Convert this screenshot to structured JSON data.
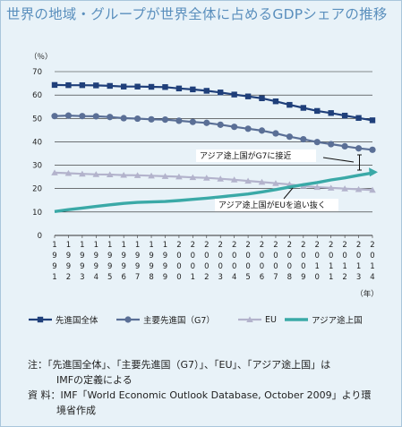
{
  "title": "世界の地域・グループが世界全体に占めるGDPシェアの推移",
  "chart_data": {
    "type": "line",
    "ylabel": "（％）",
    "xlabel": "（年）",
    "ylim": [
      0,
      70
    ],
    "yticks": [
      "0",
      "10",
      "20",
      "30",
      "40",
      "50",
      "60",
      "70"
    ],
    "grid": true,
    "x": [
      1991,
      1992,
      1993,
      1994,
      1995,
      1996,
      1997,
      1998,
      1999,
      2000,
      2001,
      2002,
      2003,
      2004,
      2005,
      2006,
      2007,
      2008,
      2009,
      2010,
      2011,
      2012,
      2013,
      2014
    ],
    "xticks": [
      [
        "1",
        "9",
        "9",
        "1"
      ],
      [
        "1",
        "9",
        "9",
        "2"
      ],
      [
        "1",
        "9",
        "9",
        "3"
      ],
      [
        "1",
        "9",
        "9",
        "4"
      ],
      [
        "1",
        "9",
        "9",
        "5"
      ],
      [
        "1",
        "9",
        "9",
        "6"
      ],
      [
        "1",
        "9",
        "9",
        "7"
      ],
      [
        "1",
        "9",
        "9",
        "8"
      ],
      [
        "1",
        "9",
        "9",
        "9"
      ],
      [
        "2",
        "0",
        "0",
        "0"
      ],
      [
        "2",
        "0",
        "0",
        "1"
      ],
      [
        "2",
        "0",
        "0",
        "2"
      ],
      [
        "2",
        "0",
        "0",
        "3"
      ],
      [
        "2",
        "0",
        "0",
        "4"
      ],
      [
        "2",
        "0",
        "0",
        "5"
      ],
      [
        "2",
        "0",
        "0",
        "6"
      ],
      [
        "2",
        "0",
        "0",
        "7"
      ],
      [
        "2",
        "0",
        "0",
        "8"
      ],
      [
        "2",
        "0",
        "0",
        "9"
      ],
      [
        "2",
        "0",
        "1",
        "0"
      ],
      [
        "2",
        "0",
        "1",
        "1"
      ],
      [
        "2",
        "0",
        "1",
        "2"
      ],
      [
        "2",
        "0",
        "1",
        "3"
      ],
      [
        "2",
        "0",
        "1",
        "4"
      ]
    ],
    "series": [
      {
        "name": "先進国全体",
        "color": "#1f3f7a",
        "marker": "square",
        "values": [
          64.3,
          64.2,
          64.2,
          64.1,
          63.9,
          63.6,
          63.6,
          63.5,
          63.4,
          62.8,
          62.4,
          61.8,
          61.1,
          60.2,
          59.4,
          58.6,
          57.3,
          55.8,
          54.5,
          53.2,
          52.3,
          51.2,
          50.2,
          49.2
        ]
      },
      {
        "name": "主要先進国（G7）",
        "color": "#5a6f96",
        "marker": "circle",
        "values": [
          51.0,
          51.2,
          51.0,
          50.9,
          50.6,
          50.1,
          49.9,
          49.6,
          49.5,
          49.0,
          48.5,
          48.1,
          47.3,
          46.4,
          45.6,
          44.8,
          43.6,
          42.2,
          41.1,
          39.9,
          39.0,
          38.1,
          37.2,
          36.6
        ]
      },
      {
        "name": "EU",
        "color": "#b3b3cc",
        "marker": "triangle",
        "values": [
          26.8,
          26.6,
          26.3,
          26.1,
          26.0,
          25.8,
          25.7,
          25.5,
          25.3,
          25.1,
          24.8,
          24.6,
          24.2,
          23.8,
          23.3,
          22.8,
          22.3,
          21.8,
          21.1,
          20.6,
          20.3,
          20.0,
          19.7,
          19.4
        ]
      },
      {
        "name": "アジア途上国",
        "color": "#3aa9a7",
        "marker": "none",
        "values": [
          10.2,
          11.0,
          11.7,
          12.4,
          13.1,
          13.7,
          14.1,
          14.3,
          14.5,
          14.9,
          15.4,
          15.9,
          16.5,
          17.1,
          17.7,
          18.6,
          19.6,
          20.7,
          21.7,
          22.6,
          23.7,
          24.6,
          25.7,
          26.7
        ]
      }
    ],
    "annotations": [
      "アジア途上国がG7に接近",
      "アジア途上国がEUを追い抜く"
    ]
  },
  "notes": [
    "注：「先進国全体」、「主要先進国（G7）」、「EU」、「アジア途上国」は",
    "IMFの定義による",
    "資 料：IMF「World Economic Outlook Database, October 2009」より環",
    "境省作成"
  ]
}
